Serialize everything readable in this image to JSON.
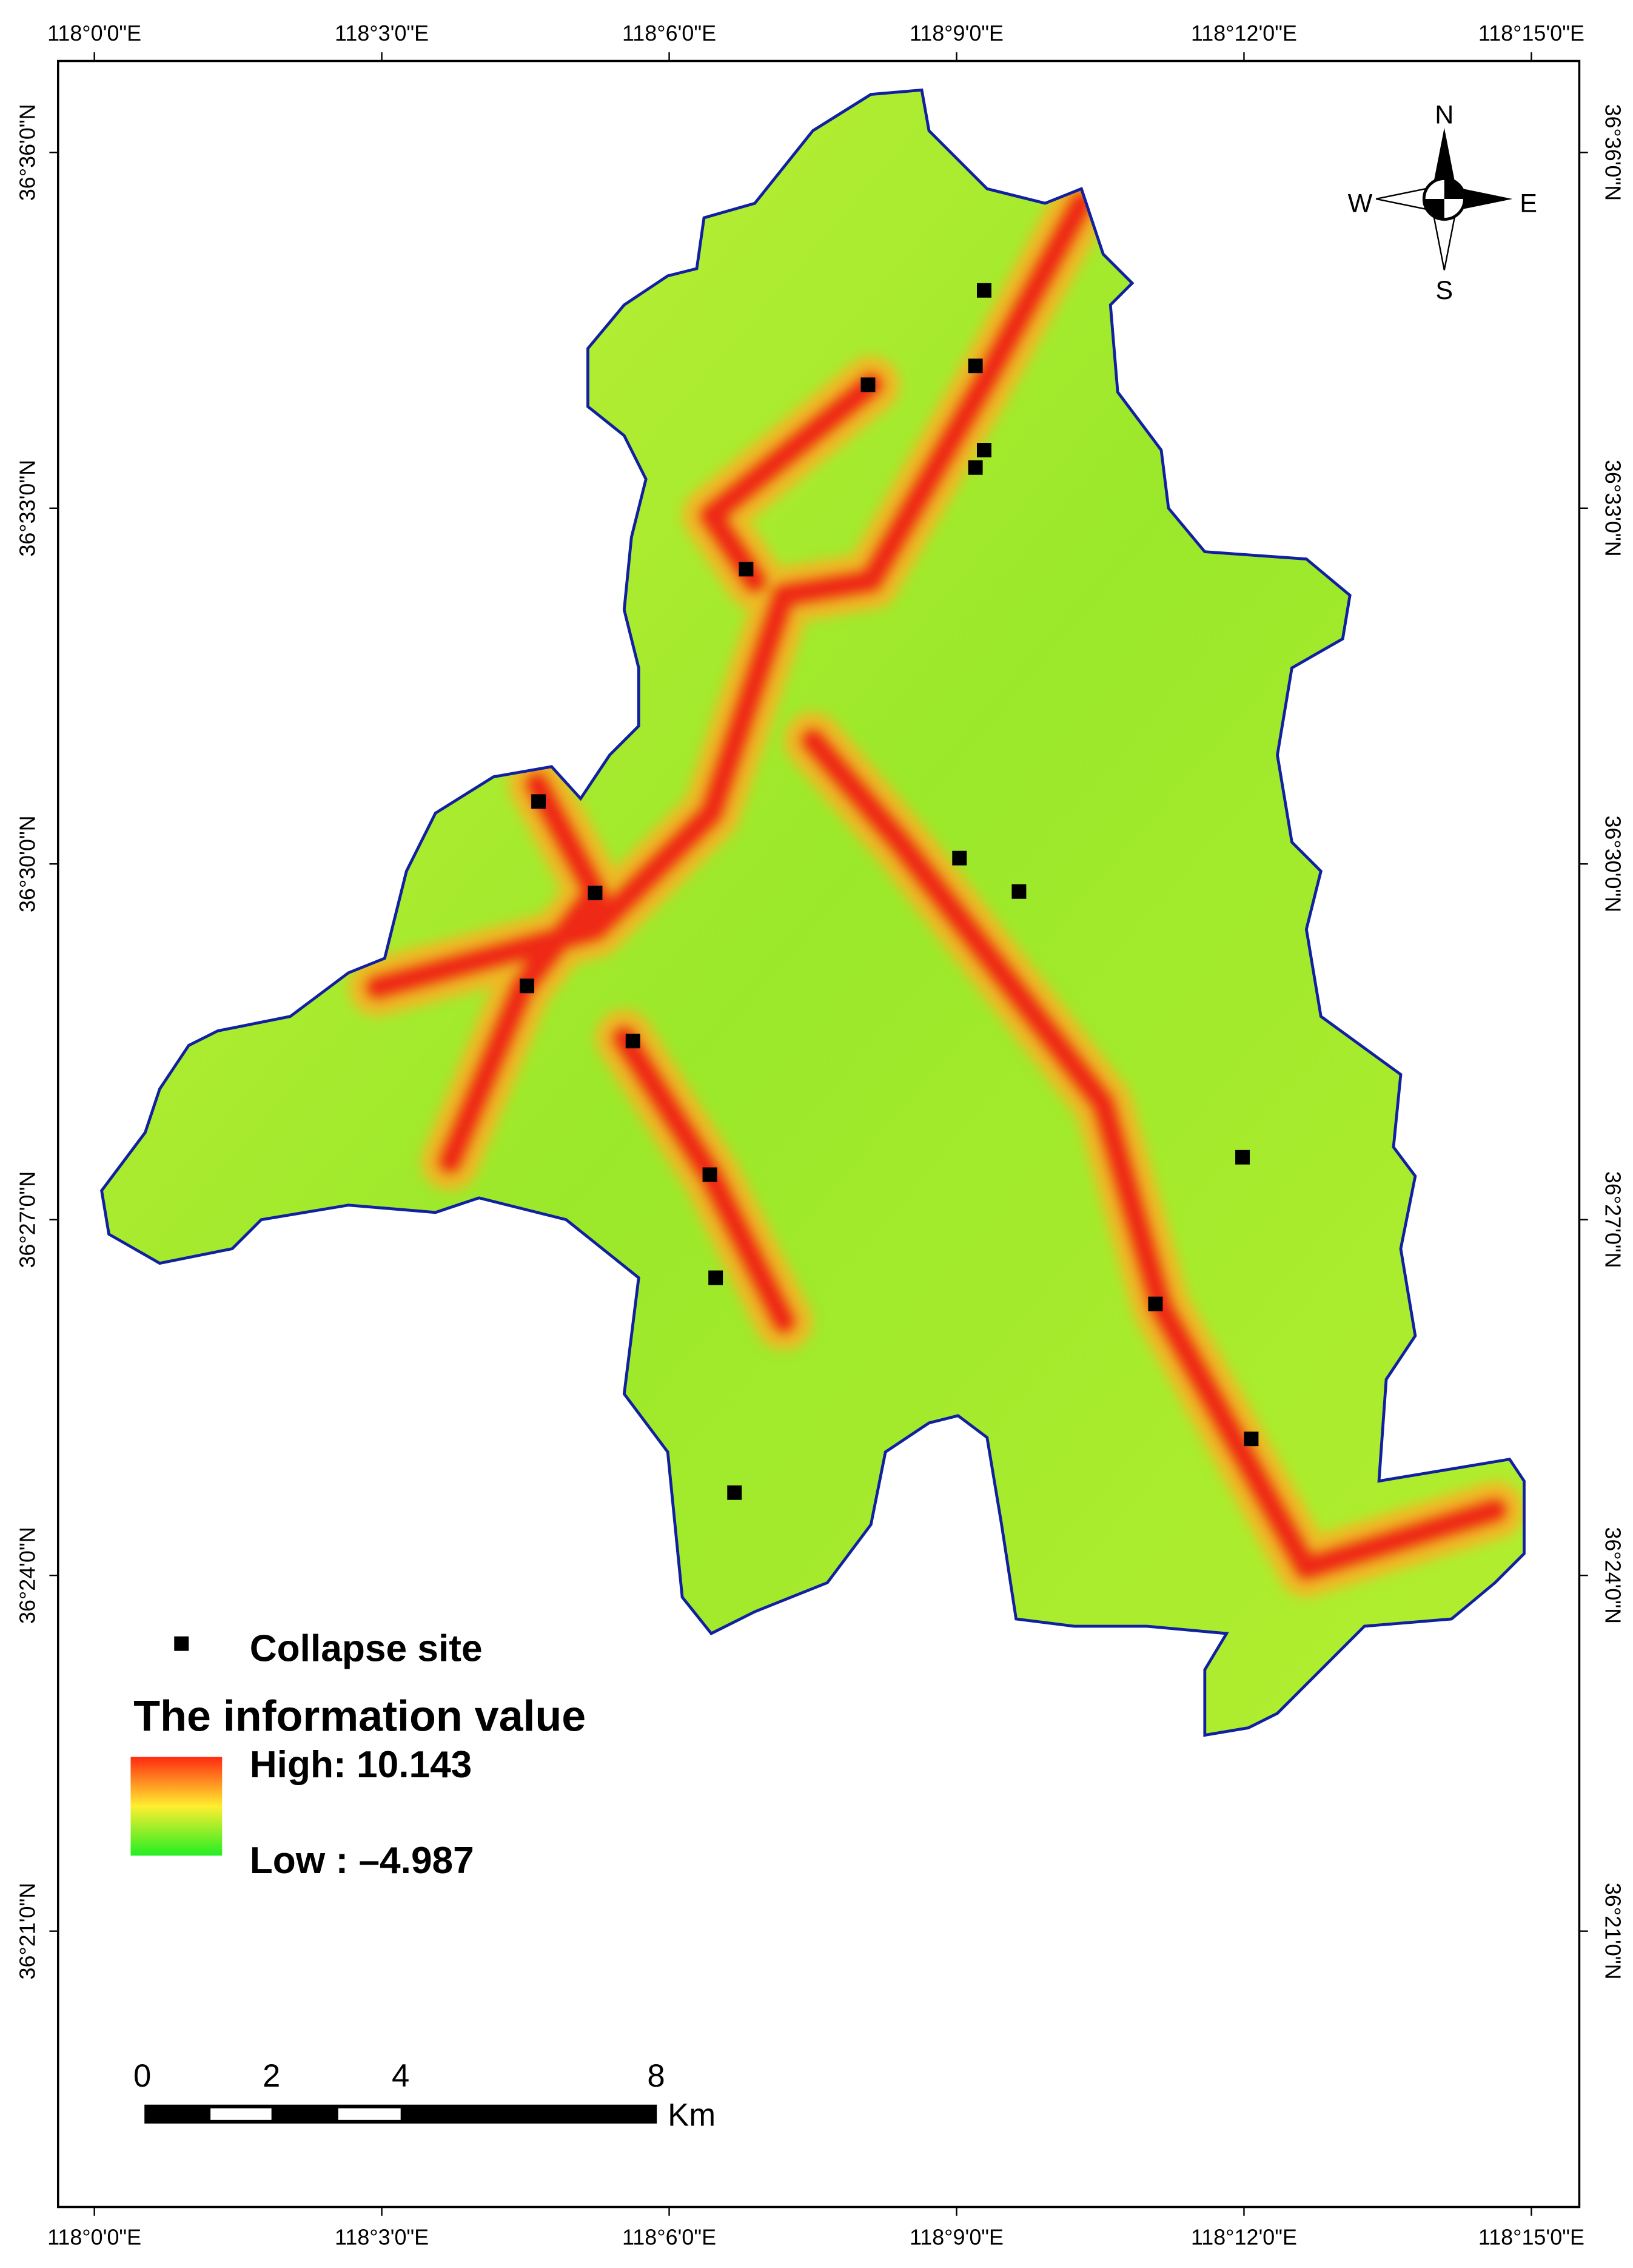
{
  "map": {
    "longitude_labels": [
      "118°0'0\"E",
      "118°3'0\"E",
      "118°6'0\"E",
      "118°9'0\"E",
      "118°12'0\"E",
      "118°15'0\"E"
    ],
    "latitude_labels": [
      "36°36'0\"N",
      "36°33'0\"N",
      "36°30'0\"N",
      "36°27'0\"N",
      "36°24'0\"N",
      "36°21'0\"N"
    ],
    "compass": {
      "north": "N",
      "south": "S",
      "west": "W",
      "east": "E"
    },
    "legend": {
      "point_label": "Collapse site",
      "title": "The information value",
      "high": "High: 10.143",
      "low": "Low : –4.987"
    },
    "scale_bar": {
      "labels": [
        "0",
        "2",
        "4",
        "8"
      ],
      "unit": "Km"
    }
  }
}
